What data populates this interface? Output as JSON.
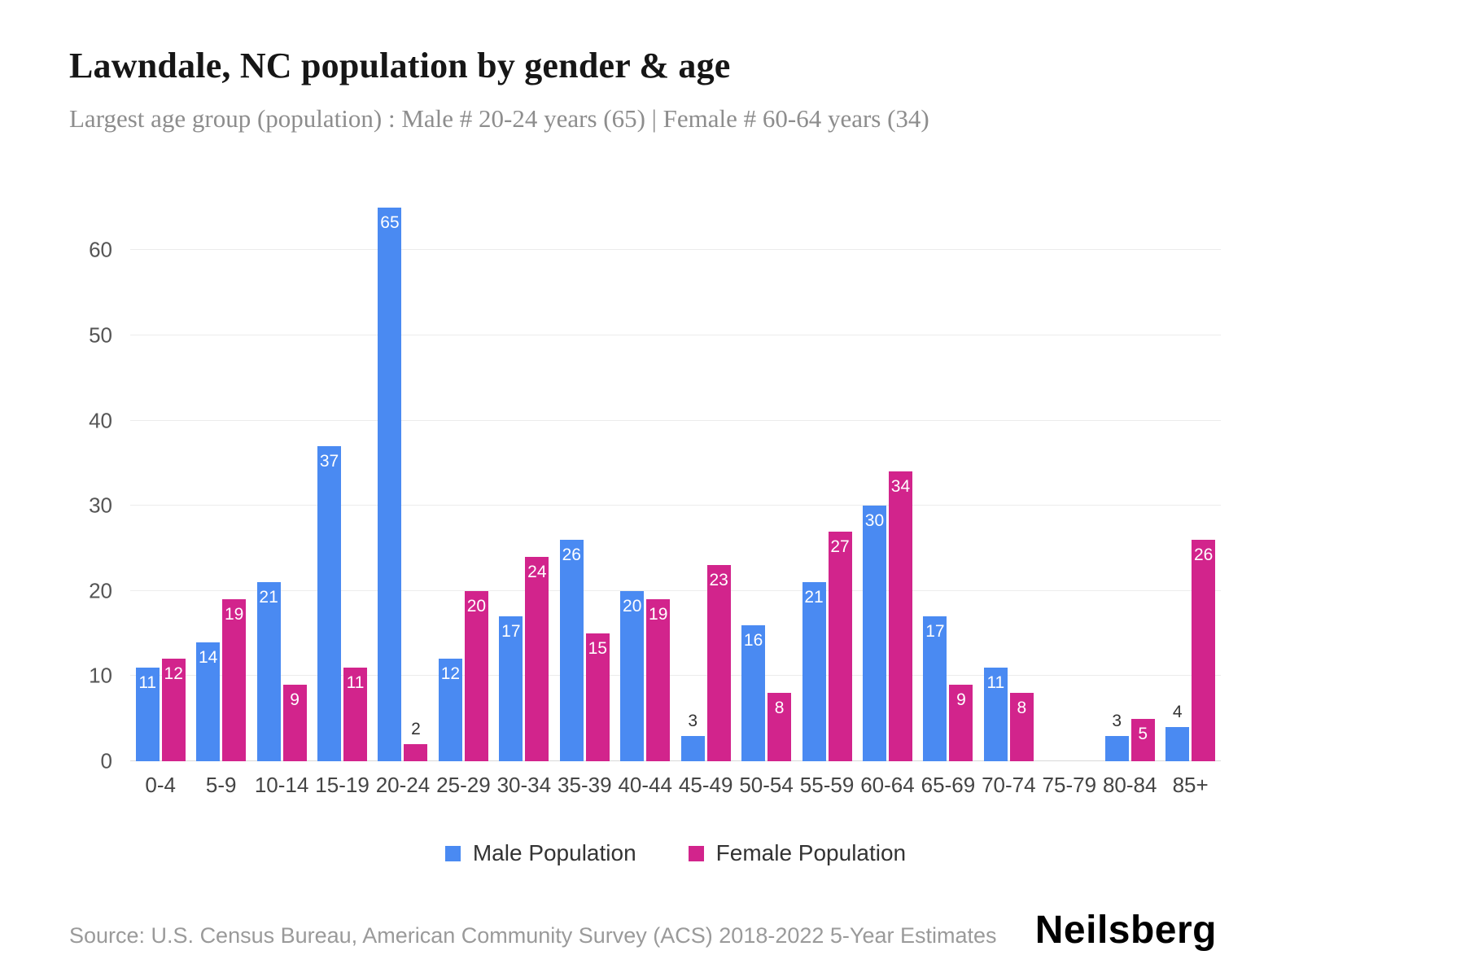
{
  "footer": {
    "source": "Source: U.S. Census Bureau, American Community Survey (ACS) 2018-2022 5-Year Estimates",
    "brand": "Neilsberg"
  },
  "chart_data": {
    "type": "bar",
    "title": "Lawndale, NC population by gender & age",
    "subtitle": "Largest age group (population) : Male # 20-24 years (65) | Female # 60-64 years (34)",
    "categories": [
      "0-4",
      "5-9",
      "10-14",
      "15-19",
      "20-24",
      "25-29",
      "30-34",
      "35-39",
      "40-44",
      "45-49",
      "50-54",
      "55-59",
      "60-64",
      "65-69",
      "70-74",
      "75-79",
      "80-84",
      "85+"
    ],
    "series": [
      {
        "name": "Male Population",
        "color": "#4A8AF2",
        "values": [
          11,
          14,
          21,
          37,
          65,
          12,
          17,
          26,
          20,
          3,
          16,
          21,
          30,
          17,
          11,
          0,
          3,
          4
        ]
      },
      {
        "name": "Female Population",
        "color": "#D2248C",
        "values": [
          12,
          19,
          9,
          11,
          2,
          20,
          24,
          15,
          19,
          23,
          8,
          27,
          34,
          9,
          8,
          0,
          5,
          26
        ]
      }
    ],
    "xlabel": "",
    "ylabel": "",
    "ylim": [
      0,
      65
    ],
    "yticks": [
      0,
      10,
      20,
      30,
      40,
      50,
      60
    ],
    "grid": "horizontal",
    "legend_position": "bottom"
  }
}
